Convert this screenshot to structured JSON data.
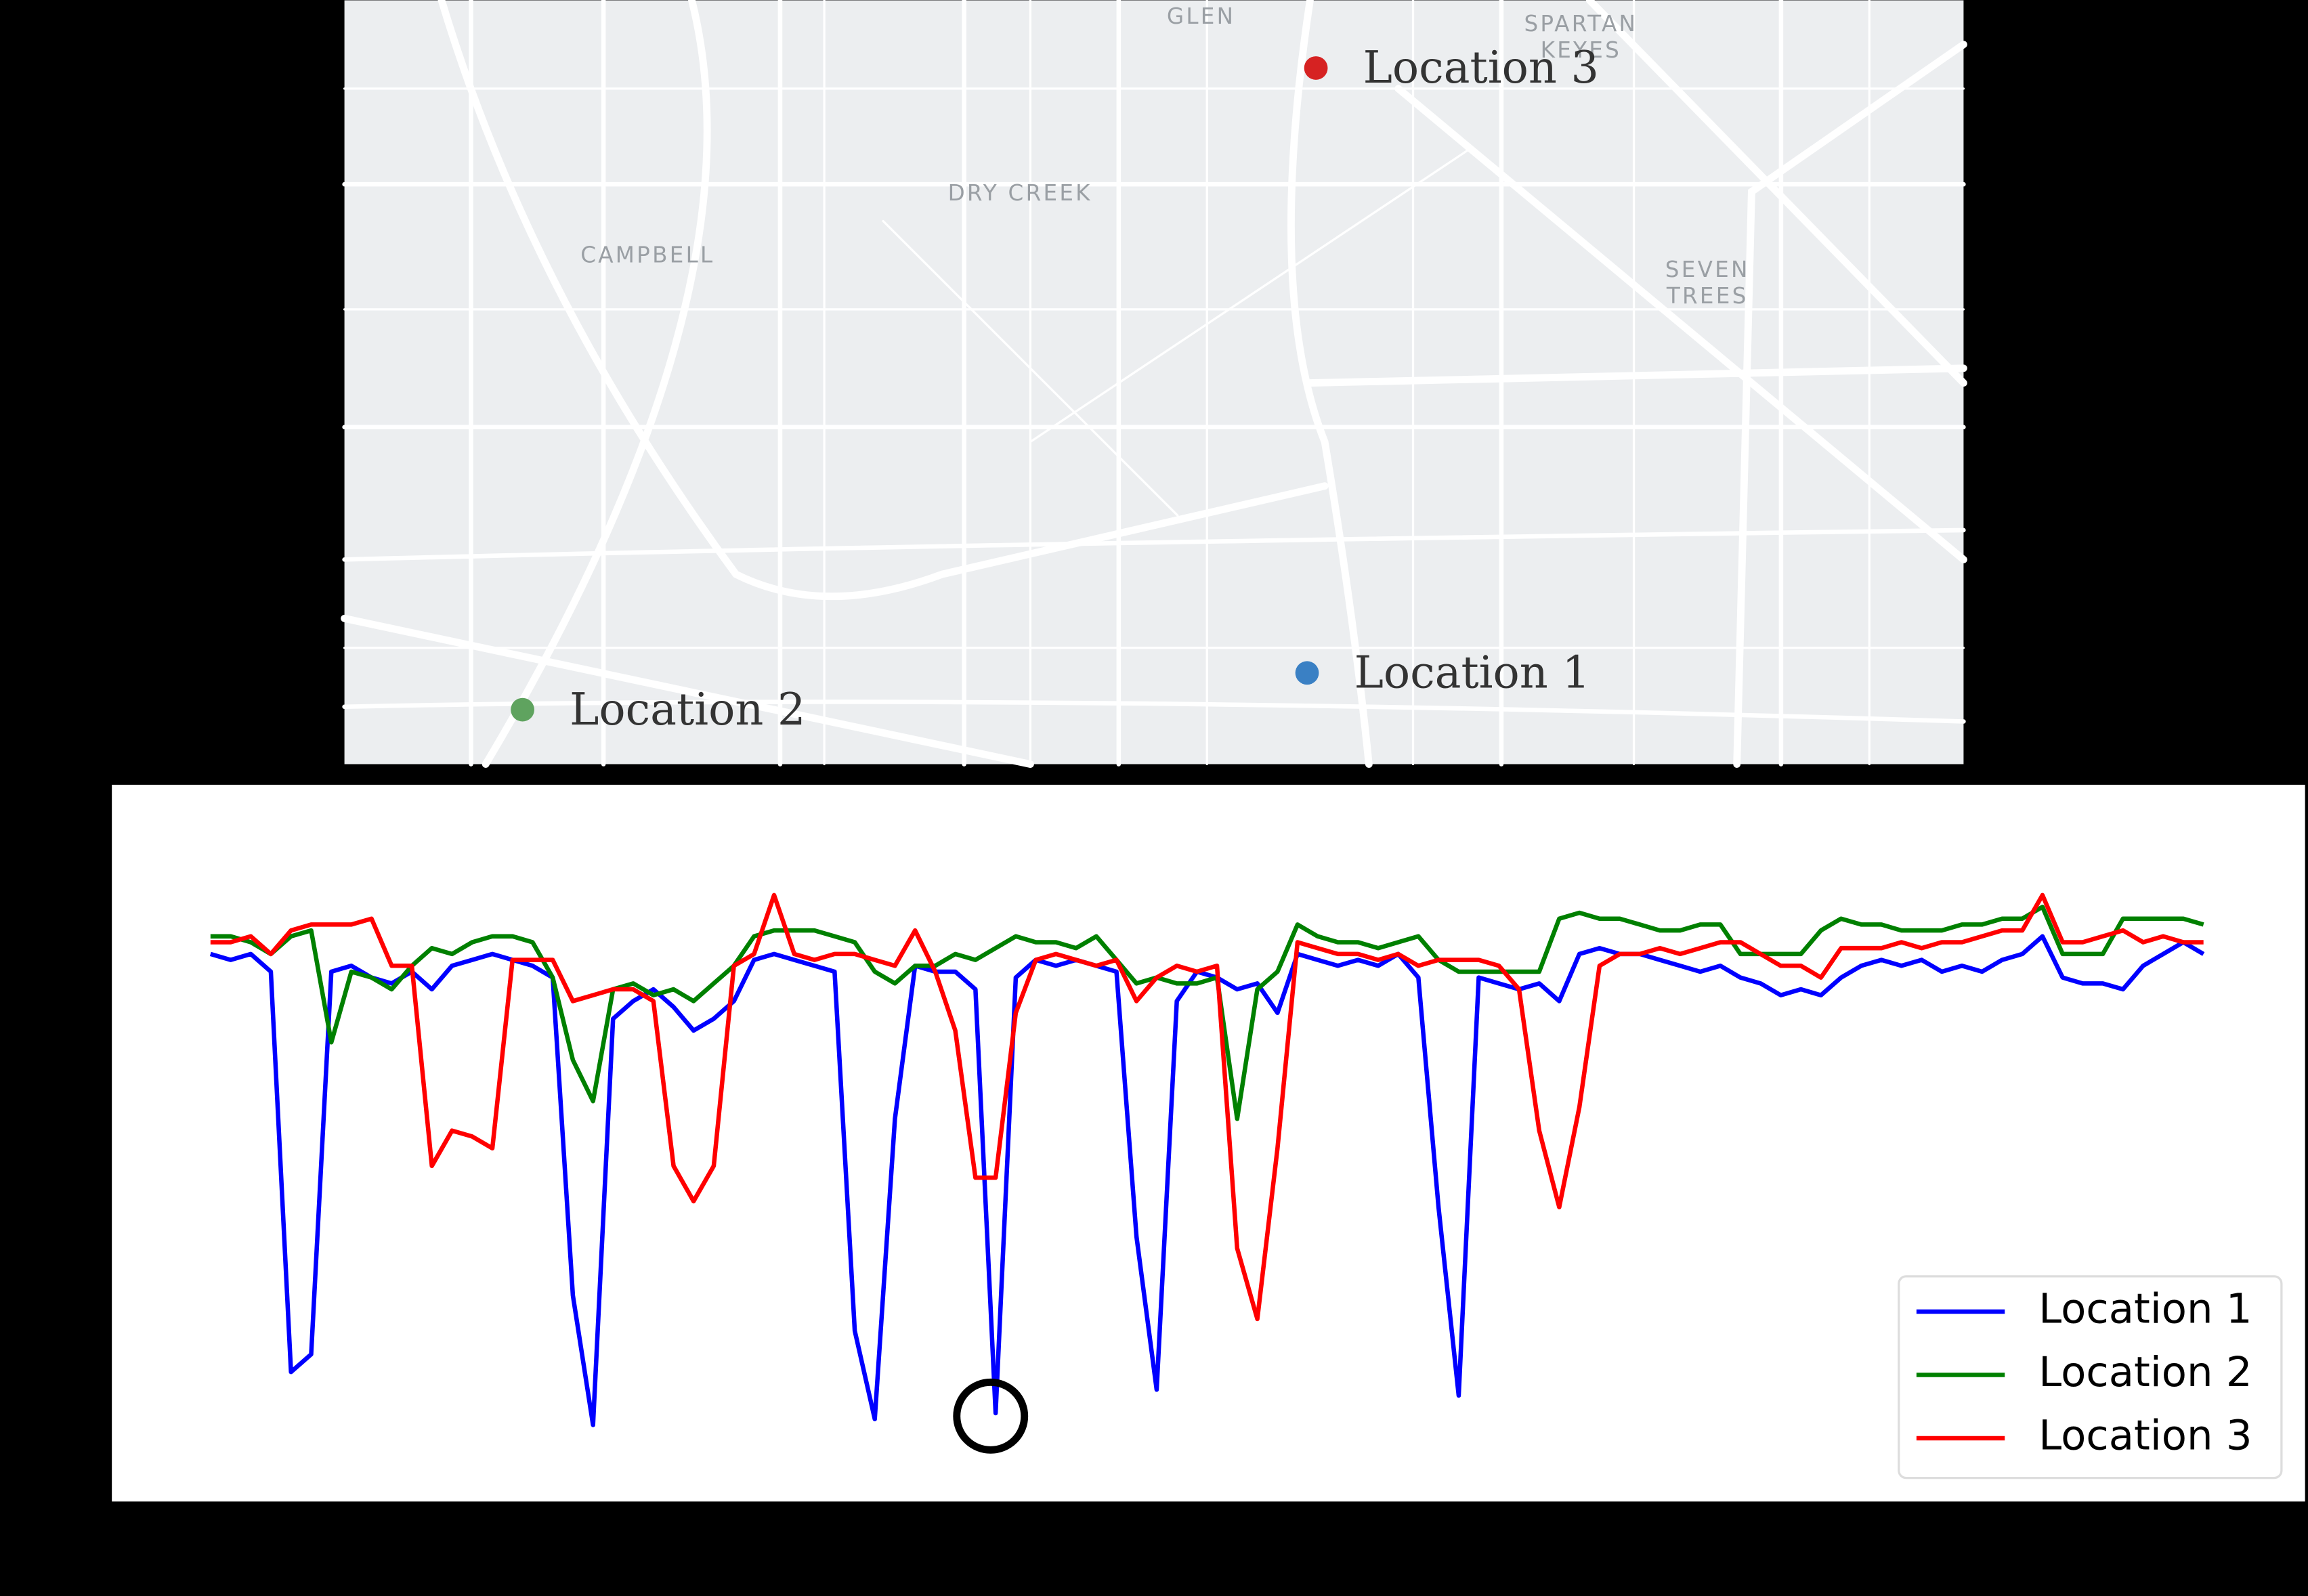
{
  "map": {
    "areas": [
      {
        "lines": [
          "GLEN"
        ]
      },
      {
        "lines": [
          "SPARTAN",
          "KEYES"
        ]
      },
      {
        "lines": [
          "DRY CREEK"
        ]
      },
      {
        "lines": [
          "CAMPBELL"
        ]
      },
      {
        "lines": [
          "SEVEN",
          "TREES"
        ]
      }
    ],
    "markers": [
      {
        "label": "Location 1",
        "color": "#3a80c4"
      },
      {
        "label": "Location 2",
        "color": "#5fa35f"
      },
      {
        "label": "Location 3",
        "color": "#d62222"
      }
    ]
  },
  "chart_data": {
    "type": "line",
    "ylim": [
      0,
      100
    ],
    "legend": "lower right",
    "series": [
      {
        "name": "Location 1",
        "color": "#0000ff",
        "values": [
          88,
          87,
          88,
          85,
          17,
          20,
          85,
          86,
          84,
          83,
          85,
          82,
          86,
          87,
          88,
          87,
          86,
          84,
          30,
          8,
          77,
          80,
          82,
          79,
          75,
          77,
          80,
          87,
          88,
          87,
          86,
          85,
          24,
          9,
          60,
          86,
          85,
          85,
          82,
          10,
          84,
          87,
          86,
          87,
          86,
          85,
          40,
          14,
          80,
          85,
          84,
          82,
          83,
          78,
          88,
          87,
          86,
          87,
          86,
          88,
          84,
          45,
          13,
          84,
          83,
          82,
          83,
          80,
          88,
          89,
          88,
          88,
          87,
          86,
          85,
          86,
          84,
          83,
          81,
          82,
          81,
          84,
          86,
          87,
          86,
          87,
          85,
          86,
          85,
          87,
          88,
          91,
          84,
          83,
          83,
          82,
          86,
          88,
          90,
          88
        ]
      },
      {
        "name": "Location 2",
        "color": "#008000",
        "values": [
          91,
          91,
          90,
          88,
          91,
          92,
          73,
          85,
          84,
          82,
          86,
          89,
          88,
          90,
          91,
          91,
          90,
          84,
          70,
          63,
          82,
          83,
          81,
          82,
          80,
          83,
          86,
          91,
          92,
          92,
          92,
          91,
          90,
          85,
          83,
          86,
          86,
          88,
          87,
          89,
          91,
          90,
          90,
          89,
          91,
          87,
          83,
          84,
          83,
          83,
          84,
          60,
          82,
          85,
          93,
          91,
          90,
          90,
          89,
          90,
          91,
          87,
          85,
          85,
          85,
          85,
          85,
          94,
          95,
          94,
          94,
          93,
          92,
          92,
          93,
          93,
          88,
          88,
          88,
          88,
          92,
          94,
          93,
          93,
          92,
          92,
          92,
          93,
          93,
          94,
          94,
          96,
          88,
          88,
          88,
          94,
          94,
          94,
          94,
          93
        ]
      },
      {
        "name": "Location 3",
        "color": "#ff0000",
        "values": [
          90,
          90,
          91,
          88,
          92,
          93,
          93,
          93,
          94,
          86,
          86,
          52,
          58,
          57,
          55,
          87,
          87,
          87,
          80,
          81,
          82,
          82,
          80,
          52,
          46,
          52,
          86,
          88,
          98,
          88,
          87,
          88,
          88,
          87,
          86,
          92,
          85,
          75,
          50,
          50,
          78,
          87,
          88,
          87,
          86,
          87,
          80,
          84,
          86,
          85,
          86,
          38,
          26,
          55,
          90,
          89,
          88,
          88,
          87,
          88,
          86,
          87,
          87,
          87,
          86,
          82,
          58,
          45,
          62,
          86,
          88,
          88,
          89,
          88,
          89,
          90,
          90,
          88,
          86,
          86,
          84,
          89,
          89,
          89,
          90,
          89,
          90,
          90,
          91,
          92,
          92,
          98,
          90,
          90,
          91,
          92,
          90,
          91,
          90,
          90
        ]
      }
    ]
  }
}
